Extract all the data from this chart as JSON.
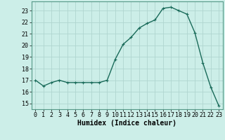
{
  "xlabel": "Humidex (Indice chaleur)",
  "x": [
    0,
    1,
    2,
    3,
    4,
    5,
    6,
    7,
    8,
    9,
    10,
    11,
    12,
    13,
    14,
    15,
    16,
    17,
    18,
    19,
    20,
    21,
    22,
    23
  ],
  "y": [
    17.0,
    16.5,
    16.8,
    17.0,
    16.8,
    16.8,
    16.8,
    16.8,
    16.8,
    17.0,
    18.8,
    20.1,
    20.7,
    21.5,
    21.9,
    22.2,
    23.2,
    23.3,
    23.0,
    22.7,
    21.1,
    18.5,
    16.4,
    14.8
  ],
  "line_color": "#1a6b5a",
  "marker": "+",
  "marker_size": 3,
  "bg_color": "#cceee8",
  "grid_color": "#b0d5d0",
  "ylim": [
    14.5,
    23.8
  ],
  "yticks": [
    15,
    16,
    17,
    18,
    19,
    20,
    21,
    22,
    23
  ],
  "xlim": [
    -0.5,
    23.5
  ],
  "linewidth": 1.0,
  "tick_fontsize": 6,
  "label_fontsize": 7,
  "font_family": "monospace"
}
